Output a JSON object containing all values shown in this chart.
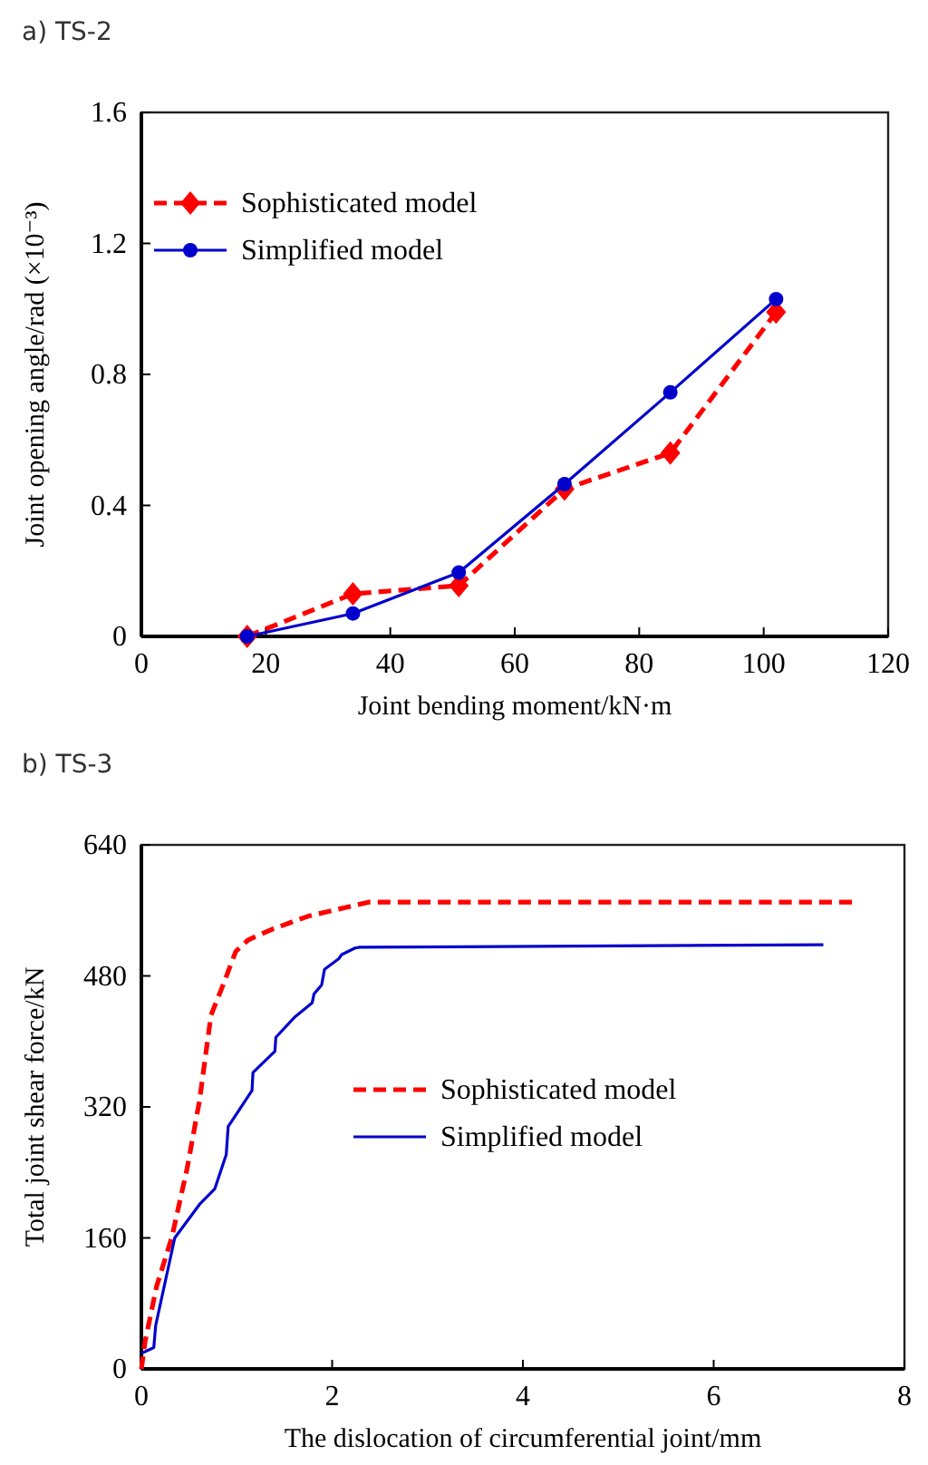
{
  "chart_data": [
    {
      "type": "line",
      "title": "a) TS-2",
      "xlabel": "Joint bending moment/kN·m",
      "ylabel": "Joint opening angle/rad (×10⁻³)",
      "xlim": [
        0,
        120
      ],
      "xticks": [
        0,
        20,
        40,
        60,
        80,
        100,
        120
      ],
      "ylim": [
        0,
        1.6
      ],
      "yticks": [
        0,
        0.4,
        0.8,
        1.2,
        1.6
      ],
      "legend": "top left",
      "grid": false,
      "x": [
        17,
        34,
        51,
        68,
        85,
        102
      ],
      "series": [
        {
          "name": "Sophisticated model",
          "color": "#ff0000",
          "line_style": "dashed",
          "marker": "diamond",
          "values": [
            0,
            0.13,
            0.155,
            0.45,
            0.56,
            0.99
          ]
        },
        {
          "name": "Simplified model",
          "color": "#0000cc",
          "line_style": "solid",
          "marker": "circle",
          "values": [
            0,
            0.07,
            0.195,
            0.465,
            0.745,
            1.03
          ]
        }
      ]
    },
    {
      "type": "line",
      "title": "b) TS-3",
      "xlabel": "The dislocation of circumferential joint/mm",
      "ylabel": "Total joint shear force/kN",
      "xlim": [
        0,
        8
      ],
      "xticks": [
        0,
        2,
        4,
        6,
        8
      ],
      "ylim": [
        0,
        640
      ],
      "yticks": [
        0,
        160,
        320,
        480,
        640
      ],
      "legend": "right",
      "grid": false,
      "series": [
        {
          "name": "Sophisticated model",
          "color": "#ff0000",
          "line_style": "dashed",
          "marker": "none",
          "x": [
            0,
            0.04,
            0.16,
            0.32,
            0.48,
            0.61,
            0.73,
            0.86,
            0.99,
            1.12,
            1.37,
            1.75,
            2.38,
            7.45
          ],
          "values": [
            0,
            34,
            101,
            161,
            245,
            328,
            432,
            470,
            510,
            524,
            537,
            553,
            570,
            570
          ]
        },
        {
          "name": "Simplified model",
          "color": "#0000cc",
          "line_style": "solid",
          "marker": "none",
          "x": [
            0,
            0.13,
            0.15,
            0.35,
            0.61,
            0.77,
            0.89,
            0.91,
            1.16,
            1.17,
            1.4,
            1.41,
            1.61,
            1.79,
            1.81,
            1.89,
            1.92,
            2.07,
            2.1,
            2.24,
            2.29,
            7.15
          ],
          "values": [
            19,
            26,
            53,
            160,
            201,
            220,
            262,
            296,
            340,
            362,
            388,
            405,
            430,
            447,
            458,
            469,
            488,
            501,
            506,
            514,
            515,
            518
          ]
        }
      ]
    }
  ]
}
